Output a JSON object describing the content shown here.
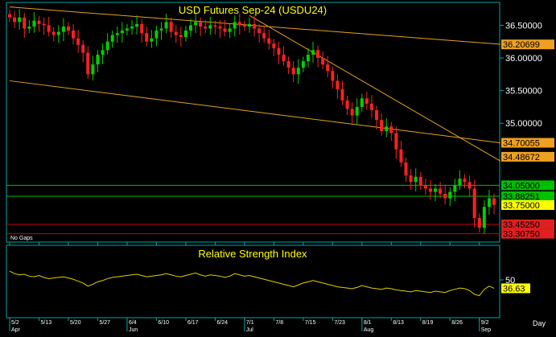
{
  "title": "USD Futures  Sep-24  (USDU24)",
  "note": "No Gaps",
  "rsi_title": "Relative Strength Index",
  "x_unit_label": "Day",
  "colors": {
    "background": "#000000",
    "axis": "#00a8a8",
    "title": "#ffff00",
    "trendline": "#e8a020",
    "support": "#00c000",
    "resistance": "#d00000",
    "up_candle": "#00d000",
    "down_candle": "#ff2020",
    "rsi_line": "#e0d000"
  },
  "chart_data": [
    {
      "type": "candlestick",
      "title": "USD Futures  Sep-24  (USDU24)",
      "y_ticks": [
        "36.50000",
        "36.00000",
        "35.50000",
        "35.00000"
      ],
      "ylim": [
        33.18,
        36.85
      ],
      "x_tick_labels": [
        "5/2",
        "5/13",
        "5/20",
        "5/27",
        "6/4",
        "6/10",
        "6/17",
        "6/24",
        "7/1",
        "7/8",
        "7/15",
        "7/23",
        "8/1",
        "8/13",
        "8/19",
        "8/26",
        "9/2"
      ],
      "x_month_labels": [
        "Apr",
        "Jun",
        "Jul",
        "Aug",
        "Sep"
      ],
      "price_labels": [
        {
          "value": 36.20699,
          "text": "36.20699",
          "kind": "trend"
        },
        {
          "value": 34.70055,
          "text": "34.70055",
          "kind": "trend"
        },
        {
          "value": 34.48672,
          "text": "34.48672",
          "kind": "trend"
        },
        {
          "value": 34.05,
          "text": "34.05000",
          "kind": "support"
        },
        {
          "value": 33.88251,
          "text": "33.88251",
          "kind": "support"
        },
        {
          "value": 33.75,
          "text": "33.75000",
          "kind": "last"
        },
        {
          "value": 33.4525,
          "text": "33.45250",
          "kind": "resistance"
        },
        {
          "value": 33.3075,
          "text": "33.30750",
          "kind": "resistance"
        }
      ],
      "trendlines": [
        {
          "from": [
            0,
            36.78
          ],
          "to": [
            99,
            36.21
          ]
        },
        {
          "from": [
            0,
            35.65
          ],
          "to": [
            99,
            34.7
          ]
        },
        {
          "from": [
            49,
            36.65
          ],
          "to": [
            99,
            34.42
          ]
        }
      ],
      "horizontal_lines": [
        {
          "value": 34.05,
          "kind": "support"
        },
        {
          "value": 33.88251,
          "kind": "support"
        },
        {
          "value": 33.4525,
          "kind": "resistance"
        },
        {
          "value": 33.3075,
          "kind": "resistance"
        }
      ],
      "close": [
        36.62,
        36.55,
        36.62,
        36.45,
        36.48,
        36.57,
        36.52,
        36.5,
        36.4,
        36.35,
        36.4,
        36.48,
        36.42,
        36.3,
        36.2,
        36.08,
        35.75,
        35.9,
        36.05,
        36.12,
        36.25,
        36.35,
        36.38,
        36.42,
        36.45,
        36.48,
        36.52,
        36.38,
        36.25,
        36.3,
        36.42,
        36.45,
        36.55,
        36.4,
        36.35,
        36.32,
        36.42,
        36.5,
        36.55,
        36.48,
        36.45,
        36.5,
        36.48,
        36.45,
        36.4,
        36.45,
        36.55,
        36.5,
        36.48,
        36.52,
        36.45,
        36.38,
        36.3,
        36.22,
        36.15,
        36.05,
        35.95,
        35.85,
        35.75,
        35.85,
        35.95,
        36.05,
        36.12,
        36.0,
        35.9,
        35.8,
        35.65,
        35.52,
        35.35,
        35.22,
        35.12,
        35.25,
        35.38,
        35.3,
        35.2,
        35.05,
        34.88,
        34.95,
        34.85,
        34.6,
        34.4,
        34.2,
        34.1,
        34.18,
        34.05,
        34.0,
        33.95,
        34.0,
        33.92,
        33.85,
        33.95,
        34.05,
        34.15,
        34.1,
        34.0,
        33.55,
        33.4,
        33.72,
        33.85,
        33.75
      ],
      "rsi": [
        64,
        60,
        58,
        59,
        56,
        55,
        57,
        54,
        52,
        53,
        54,
        55,
        53,
        51,
        48,
        45,
        40,
        43,
        47,
        49,
        52,
        54,
        55,
        56,
        57,
        58,
        59,
        57,
        55,
        56,
        57,
        58,
        60,
        58,
        56,
        55,
        57,
        59,
        61,
        58,
        56,
        58,
        57,
        56,
        54,
        56,
        60,
        58,
        56,
        57,
        55,
        53,
        51,
        49,
        47,
        45,
        43,
        41,
        39,
        42,
        45,
        47,
        49,
        47,
        45,
        43,
        41,
        39,
        38,
        37,
        36,
        38,
        41,
        39,
        37,
        36,
        35,
        37,
        36,
        34,
        33,
        32,
        31,
        33,
        32,
        31,
        30,
        32,
        31,
        30,
        33,
        35,
        37,
        36,
        33,
        27,
        25,
        35,
        40,
        36.63
      ],
      "rsi_ticks": [
        "50"
      ],
      "rsi_last_label": "36.63",
      "rsi_ylim": [
        0,
        100
      ]
    }
  ]
}
